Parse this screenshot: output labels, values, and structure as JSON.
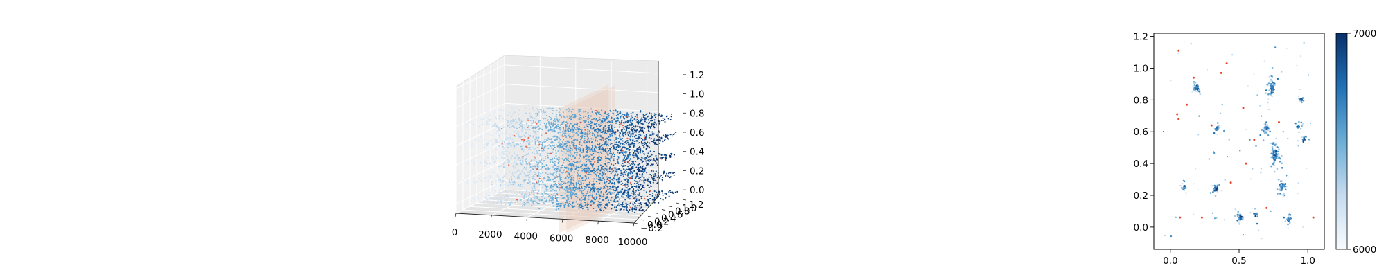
{
  "chart_data": [
    {
      "type": "scatter",
      "projection": "3d",
      "title": "",
      "xlabel": "",
      "ylabel": "",
      "zlabel": "",
      "x_ticks": [
        "0",
        "2000",
        "4000",
        "6000",
        "8000",
        "10000"
      ],
      "y_ticks": [
        "−0.2",
        "0.0",
        "0.2",
        "0.4",
        "0.6",
        "0.8",
        "1.0",
        "1.2"
      ],
      "z_ticks": [
        "0.0",
        "0.2",
        "0.4",
        "0.6",
        "0.8",
        "1.0",
        "1.2"
      ],
      "xlim": [
        0,
        10000
      ],
      "ylim": [
        -0.2,
        1.2
      ],
      "zlim": [
        -0.1,
        1.3
      ],
      "grid": true,
      "layers_z": [
        0.0,
        0.2,
        0.4,
        0.6,
        0.8
      ],
      "layer_x_extent": [
        0,
        10000
      ],
      "planes_x": [
        5800,
        6200
      ],
      "colormap": "Blues",
      "outlier_color": "#e8462a"
    },
    {
      "type": "scatter",
      "title": "",
      "xlabel": "",
      "ylabel": "",
      "x_ticks": [
        "0.0",
        "0.5",
        "1.0"
      ],
      "y_ticks": [
        "0.0",
        "0.2",
        "0.4",
        "0.6",
        "0.8",
        "1.0",
        "1.2"
      ],
      "xlim": [
        -0.12,
        1.12
      ],
      "ylim": [
        -0.14,
        1.22
      ],
      "grid": false,
      "colormap": "Blues",
      "colorbar": {
        "min_label": "6000",
        "max_label": "7000",
        "min": 6000,
        "max": 7000
      },
      "clusters": [
        {
          "x": 0.19,
          "y": 0.88,
          "n": 45
        },
        {
          "x": 0.34,
          "y": 0.62,
          "n": 25
        },
        {
          "x": 0.1,
          "y": 0.25,
          "n": 22
        },
        {
          "x": 0.33,
          "y": 0.24,
          "n": 30
        },
        {
          "x": 0.51,
          "y": 0.06,
          "n": 55
        },
        {
          "x": 0.62,
          "y": 0.08,
          "n": 15
        },
        {
          "x": 0.74,
          "y": 0.87,
          "n": 70
        },
        {
          "x": 0.7,
          "y": 0.62,
          "n": 60
        },
        {
          "x": 0.76,
          "y": 0.45,
          "n": 120
        },
        {
          "x": 0.81,
          "y": 0.26,
          "n": 70
        },
        {
          "x": 0.95,
          "y": 0.8,
          "n": 18
        },
        {
          "x": 0.93,
          "y": 0.63,
          "n": 18
        },
        {
          "x": 0.97,
          "y": 0.55,
          "n": 15
        },
        {
          "x": 0.86,
          "y": 0.05,
          "n": 20
        }
      ],
      "red_points": [
        [
          0.06,
          1.11
        ],
        [
          0.17,
          0.94
        ],
        [
          0.41,
          1.03
        ],
        [
          0.37,
          0.97
        ],
        [
          0.05,
          0.71
        ],
        [
          0.06,
          0.68
        ],
        [
          0.3,
          0.64
        ],
        [
          0.61,
          0.55
        ],
        [
          0.55,
          0.4
        ],
        [
          0.7,
          0.12
        ],
        [
          1.04,
          0.06
        ],
        [
          0.07,
          0.06
        ],
        [
          0.23,
          0.06
        ],
        [
          0.12,
          0.77
        ],
        [
          0.53,
          0.75
        ],
        [
          0.44,
          0.28
        ],
        [
          0.79,
          0.66
        ]
      ]
    }
  ]
}
